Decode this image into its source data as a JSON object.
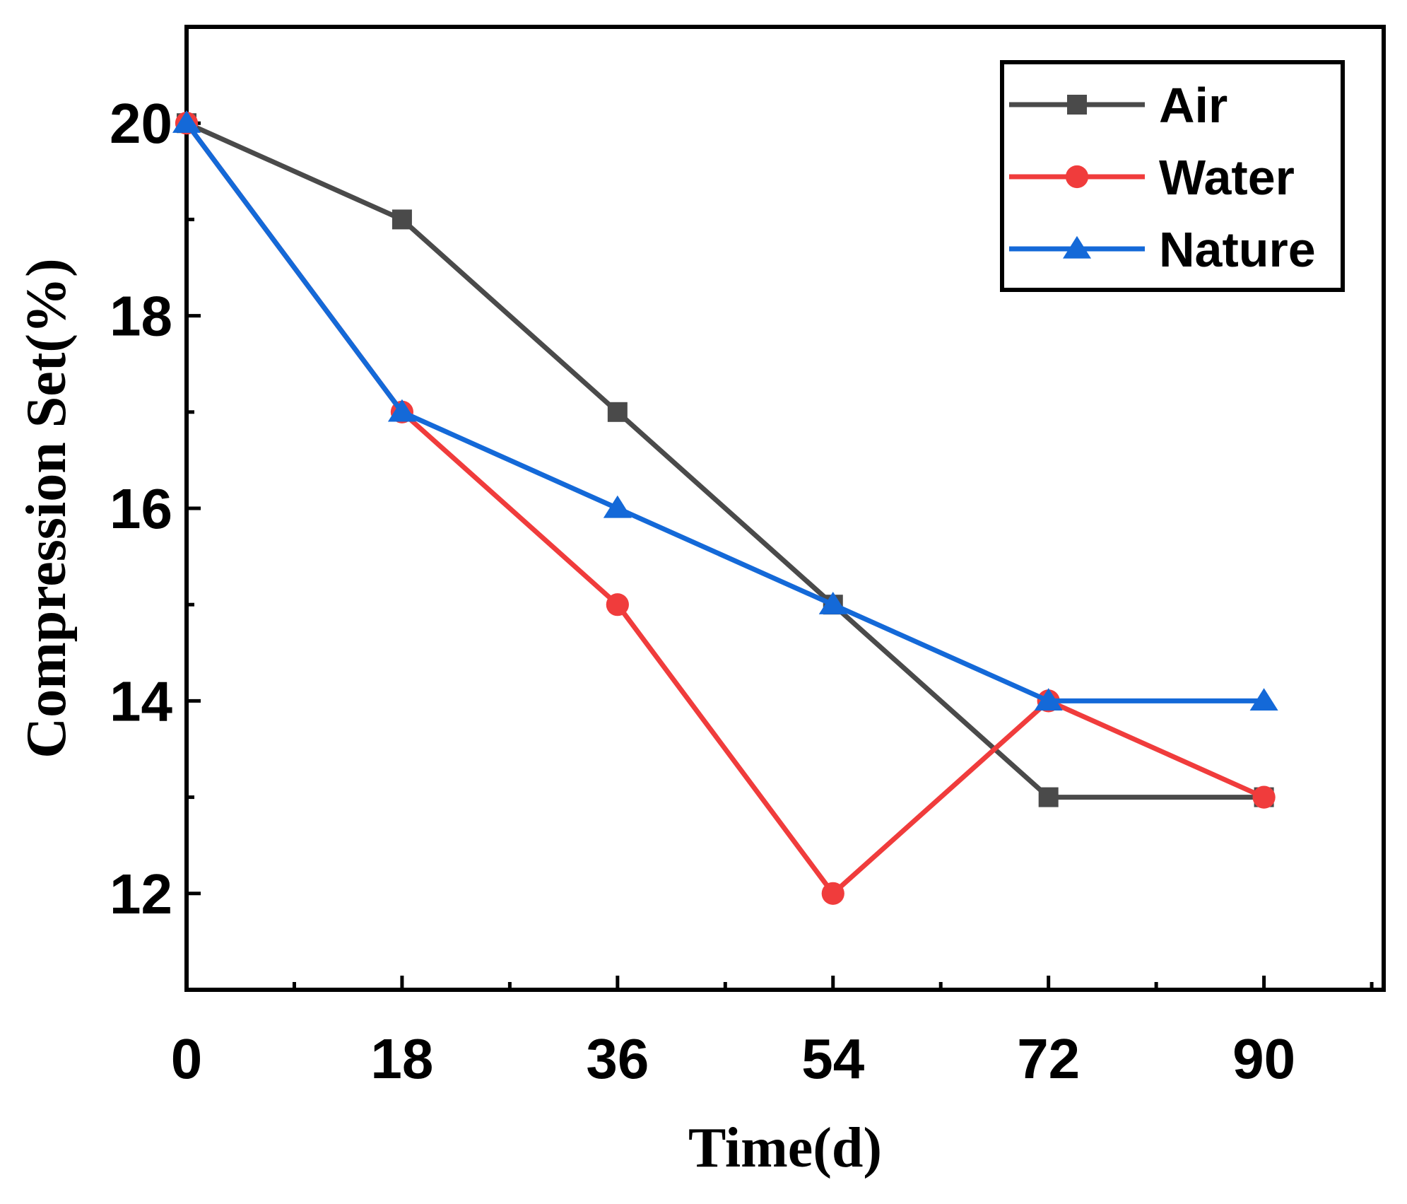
{
  "chart_data": {
    "type": "line",
    "title": "",
    "xlabel": "Time(d)",
    "ylabel": "Compression Set(%)",
    "x": [
      0,
      18,
      36,
      54,
      72,
      90
    ],
    "x_tick_labels": [
      "0",
      "18",
      "36",
      "54",
      "72",
      "90"
    ],
    "y_tick_labels": [
      "12",
      "14",
      "16",
      "18",
      "20"
    ],
    "y_ticks": [
      12,
      14,
      16,
      18,
      20
    ],
    "xlim": [
      0,
      100
    ],
    "ylim": [
      11,
      21
    ],
    "grid": false,
    "legend_position": "top-right",
    "series": [
      {
        "name": "Air",
        "color": "#4a4a4a",
        "marker": "square",
        "values": [
          20,
          19,
          17,
          15,
          13,
          13
        ]
      },
      {
        "name": "Water",
        "color": "#f03c3c",
        "marker": "circle",
        "values": [
          20,
          17,
          15,
          12,
          14,
          13
        ]
      },
      {
        "name": "Nature",
        "color": "#1469d8",
        "marker": "triangle",
        "values": [
          20,
          17,
          16,
          15,
          14,
          14
        ]
      }
    ]
  }
}
